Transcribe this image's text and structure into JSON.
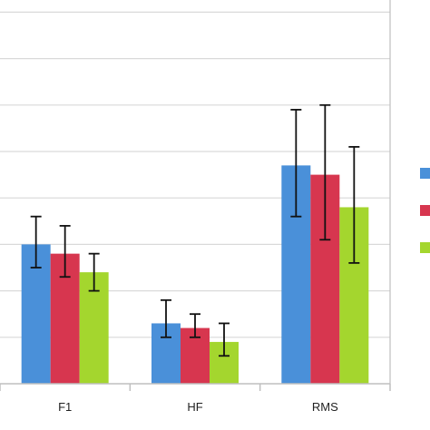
{
  "colors": {
    "gridline": "#d9d9d9",
    "axis": "#bfbfbf",
    "errorbar": "#111111"
  },
  "chart_data": {
    "type": "bar",
    "categories": [
      "F1",
      "HF",
      "RMS"
    ],
    "ylim": [
      0,
      8.5
    ],
    "yticks": [
      0,
      1,
      2,
      3,
      4,
      5,
      6,
      7,
      8
    ],
    "grid": true,
    "legend": "right",
    "series": [
      {
        "color": "#4a90d9",
        "values": [
          3.0,
          1.3,
          4.7
        ],
        "error_low": [
          2.5,
          1.0,
          3.6
        ],
        "error_high": [
          3.6,
          1.8,
          5.9
        ]
      },
      {
        "color": "#d7364f",
        "values": [
          2.8,
          1.2,
          4.5
        ],
        "error_low": [
          2.3,
          1.0,
          3.1
        ],
        "error_high": [
          3.4,
          1.5,
          6.0
        ]
      },
      {
        "color": "#a4d62e",
        "values": [
          2.4,
          0.9,
          3.8
        ],
        "error_low": [
          2.0,
          0.6,
          2.6
        ],
        "error_high": [
          2.8,
          1.3,
          5.1
        ]
      }
    ]
  }
}
